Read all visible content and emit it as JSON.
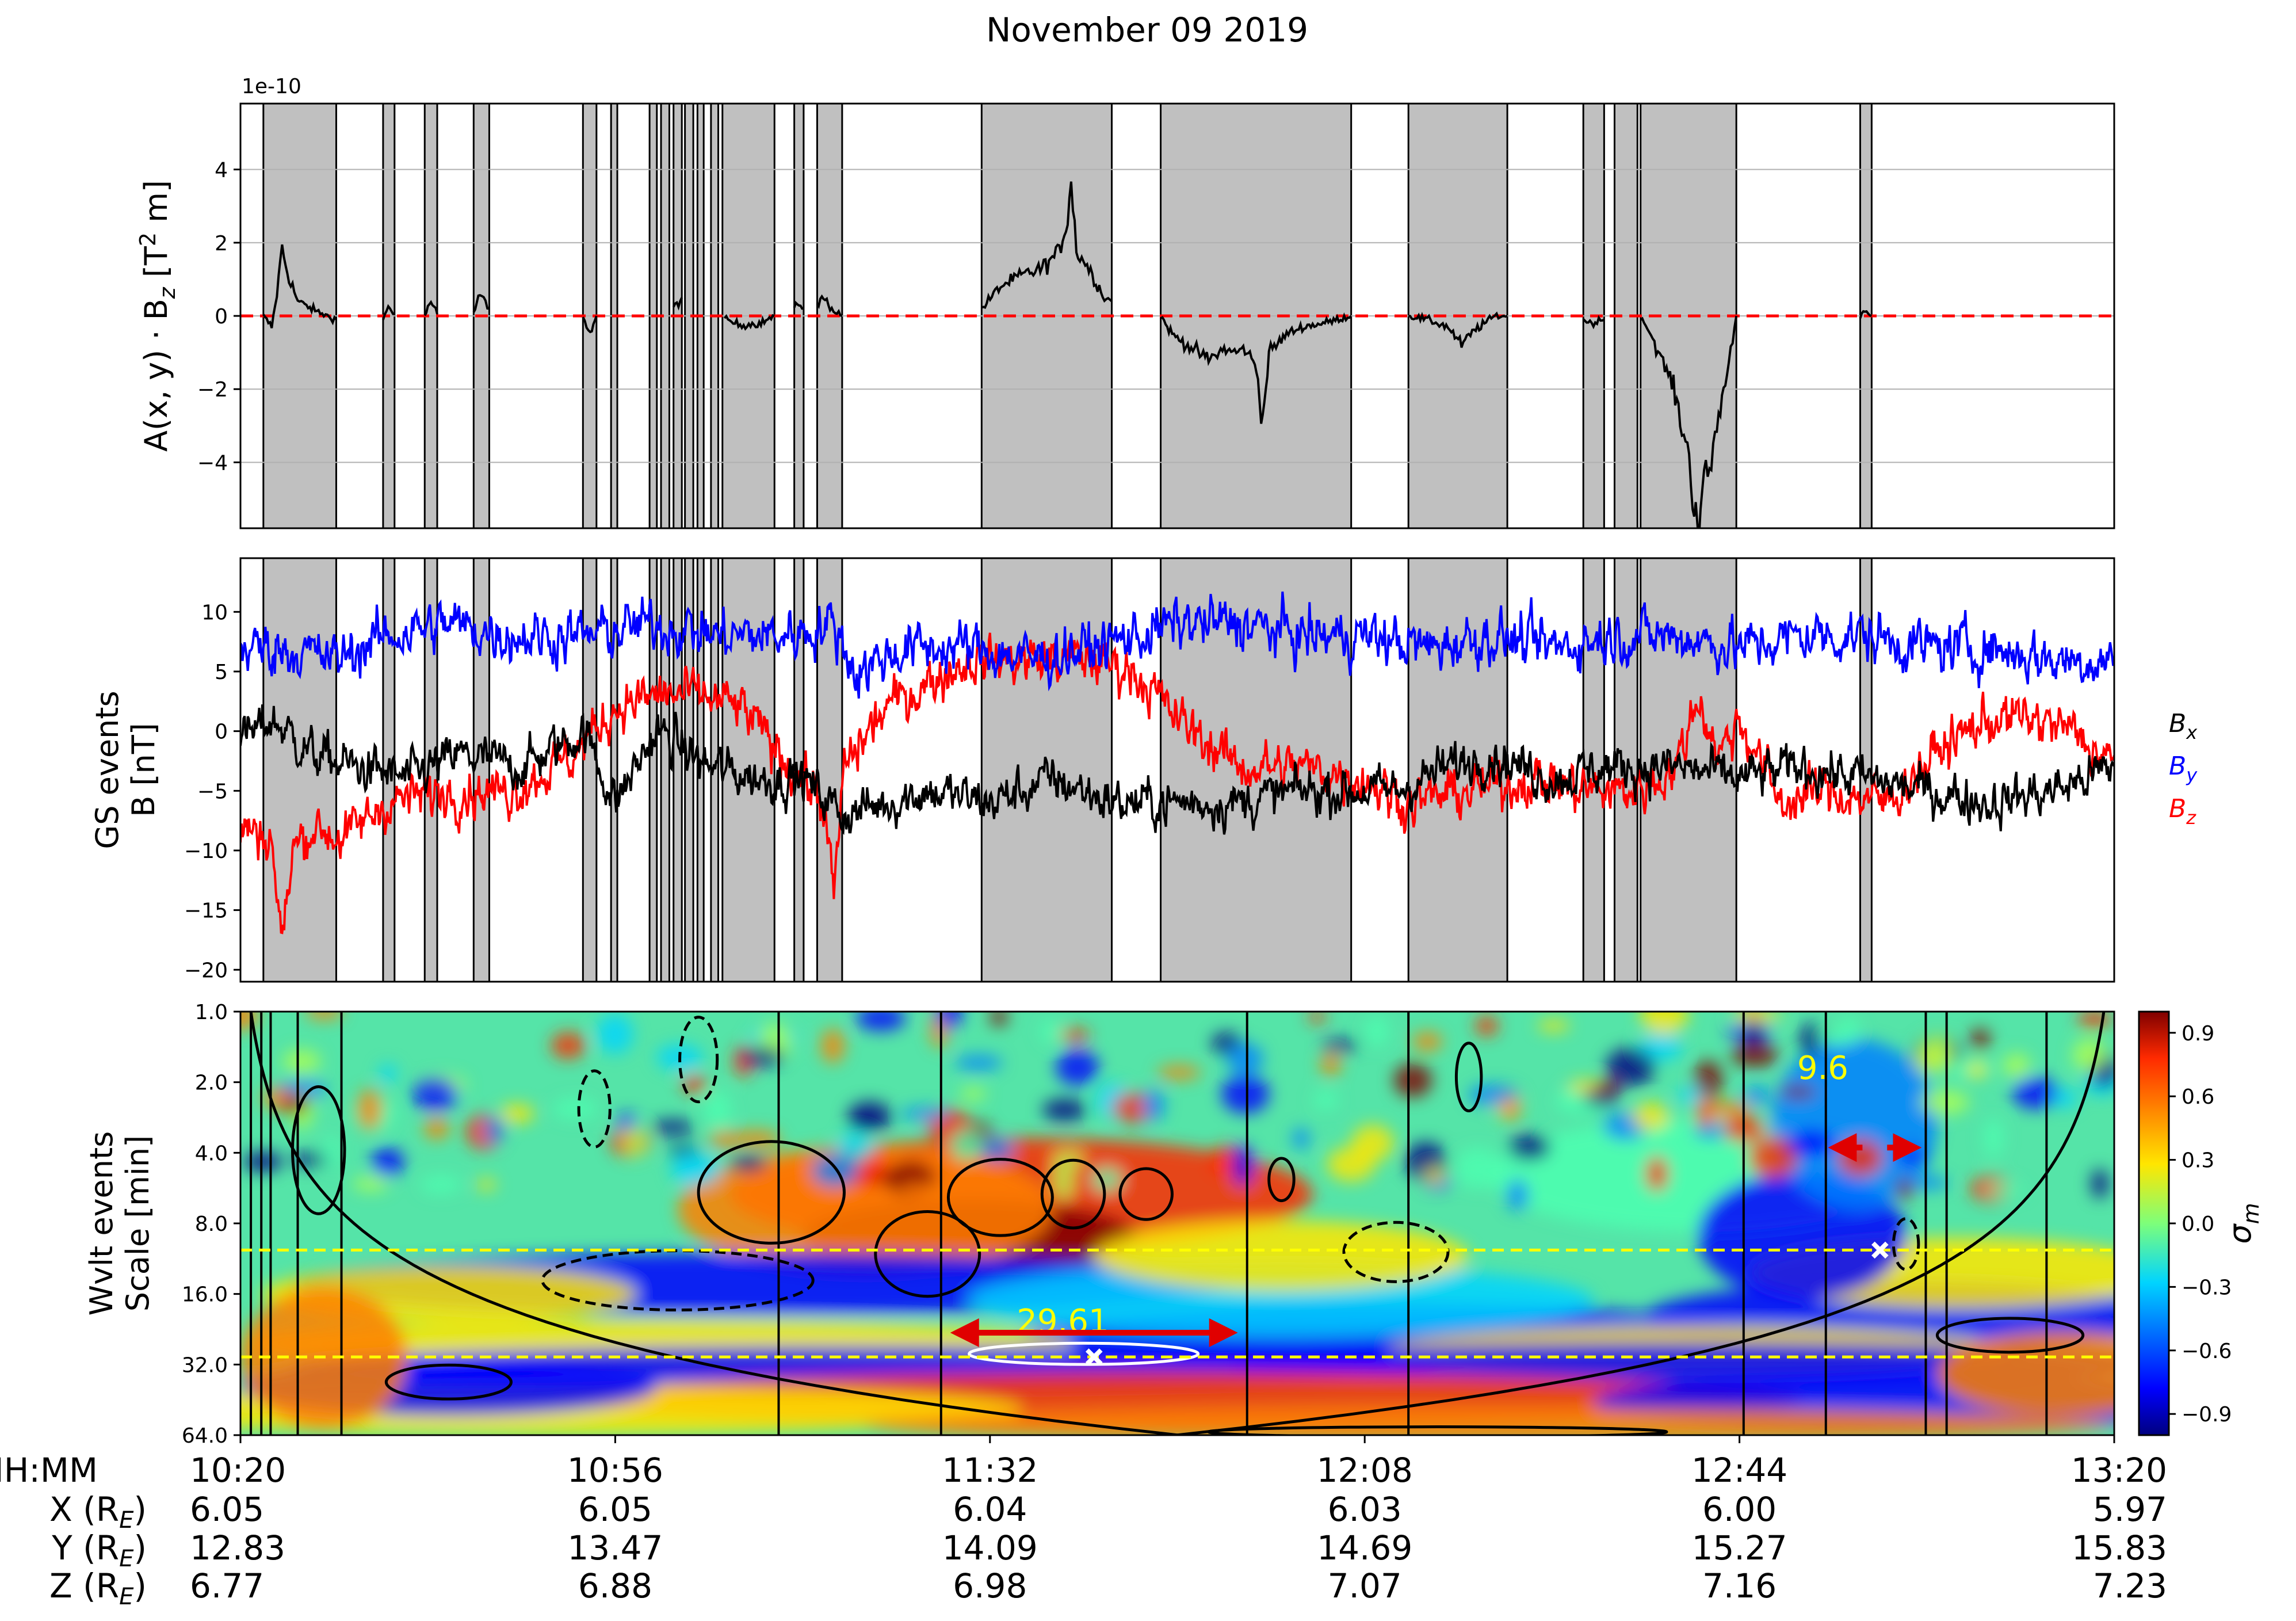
{
  "title": "November 09 2019",
  "colors": {
    "event_fill": "#c0c0c0",
    "trace_black": "#000000",
    "bx": "#000000",
    "by": "#0000ff",
    "bz": "#ff0000",
    "zero_line": "#ff0000",
    "marker_line": "#ffff00",
    "arrow": "#e00000",
    "grid": "#b0b0b0"
  },
  "chart_data": [
    {
      "type": "line",
      "name_panel": "top",
      "ylabel": "A(x, y) · B_z [T² m]",
      "ylabel_parts": {
        "a": "A(x, y) · B",
        "sub": "z",
        "b": " [T",
        "sup": "2",
        "c": " m]"
      },
      "offset_text": "1e-10",
      "ylim": [
        -5.8,
        5.8
      ],
      "yticks": [
        4,
        2,
        0,
        -2,
        -4
      ],
      "ytick_labels": [
        "4",
        "2",
        "0",
        "−2",
        "−4"
      ],
      "grid": "horizontal",
      "zero_line": "dashed red at 0",
      "x_minutes_range": [
        0,
        180
      ],
      "events_minutes": [
        [
          2.2,
          9.2
        ],
        [
          13.7,
          14.8
        ],
        [
          17.7,
          18.9
        ],
        [
          22.4,
          23.9
        ],
        [
          32.9,
          34.2
        ],
        [
          35.6,
          36.2
        ],
        [
          39.3,
          40.0
        ],
        [
          40.4,
          41.2
        ],
        [
          41.6,
          42.4
        ],
        [
          42.7,
          43.5
        ],
        [
          43.9,
          44.5
        ],
        [
          45.2,
          45.9
        ],
        [
          46.3,
          51.3
        ],
        [
          53.2,
          54.1
        ],
        [
          55.4,
          57.8
        ],
        [
          71.2,
          83.7
        ],
        [
          88.4,
          106.7
        ],
        [
          112.2,
          121.7
        ],
        [
          129.0,
          131.0
        ],
        [
          132.0,
          134.2
        ],
        [
          134.5,
          143.7
        ],
        [
          155.6,
          156.7
        ]
      ],
      "series": [
        {
          "name": "",
          "points": [
            [
              2.2,
              0.0
            ],
            [
              3.0,
              -0.3
            ],
            [
              3.5,
              0.6
            ],
            [
              4.0,
              1.9
            ],
            [
              4.5,
              1.2
            ],
            [
              5.5,
              0.4
            ],
            [
              6.5,
              0.25
            ],
            [
              7.5,
              0.1
            ],
            [
              9.2,
              -0.1
            ],
            [
              13.7,
              -0.1
            ],
            [
              14.2,
              0.25
            ],
            [
              14.8,
              0.05
            ],
            [
              17.7,
              0.0
            ],
            [
              18.3,
              0.4
            ],
            [
              18.9,
              0.05
            ],
            [
              22.4,
              0.05
            ],
            [
              23.0,
              0.6
            ],
            [
              23.9,
              0.2
            ],
            [
              32.9,
              0.0
            ],
            [
              33.6,
              -0.5
            ],
            [
              34.2,
              0.0
            ],
            [
              39.3,
              0.0
            ],
            [
              40.2,
              0.15
            ],
            [
              41.6,
              0.2
            ],
            [
              42.4,
              0.5
            ],
            [
              43.0,
              0.0
            ],
            [
              44.0,
              0.1
            ],
            [
              45.0,
              -0.2
            ],
            [
              46.5,
              -0.1
            ],
            [
              48.0,
              -0.25
            ],
            [
              50.0,
              -0.2
            ],
            [
              51.3,
              0.0
            ],
            [
              53.2,
              0.2
            ],
            [
              53.8,
              0.35
            ],
            [
              54.1,
              0.2
            ],
            [
              55.4,
              0.3
            ],
            [
              56.0,
              0.5
            ],
            [
              56.8,
              0.2
            ],
            [
              57.8,
              0.0
            ],
            [
              71.2,
              0.2
            ],
            [
              73.0,
              0.8
            ],
            [
              75.0,
              1.1
            ],
            [
              77.0,
              1.3
            ],
            [
              78.5,
              1.7
            ],
            [
              79.3,
              2.4
            ],
            [
              79.8,
              3.7
            ],
            [
              80.3,
              1.8
            ],
            [
              81.5,
              1.3
            ],
            [
              83.0,
              0.5
            ],
            [
              83.7,
              0.4
            ],
            [
              88.4,
              0.0
            ],
            [
              89.5,
              -0.5
            ],
            [
              91.0,
              -0.8
            ],
            [
              93.0,
              -1.2
            ],
            [
              94.5,
              -0.9
            ],
            [
              95.5,
              -1.0
            ],
            [
              96.5,
              -0.9
            ],
            [
              97.6,
              -1.4
            ],
            [
              98.2,
              -2.9
            ],
            [
              98.8,
              -1.0
            ],
            [
              100.5,
              -0.5
            ],
            [
              102.0,
              -0.3
            ],
            [
              104.0,
              -0.2
            ],
            [
              106.7,
              0.0
            ],
            [
              112.2,
              0.0
            ],
            [
              114.0,
              -0.1
            ],
            [
              116.0,
              -0.3
            ],
            [
              117.3,
              -0.8
            ],
            [
              118.5,
              -0.4
            ],
            [
              120.5,
              0.0
            ],
            [
              121.7,
              0.0
            ],
            [
              129.0,
              -0.1
            ],
            [
              129.8,
              -0.2
            ],
            [
              131.0,
              -0.1
            ],
            [
              134.5,
              0.0
            ],
            [
              135.5,
              -0.5
            ],
            [
              136.5,
              -1.2
            ],
            [
              137.5,
              -1.8
            ],
            [
              138.3,
              -2.8
            ],
            [
              139.0,
              -3.6
            ],
            [
              139.5,
              -4.8
            ],
            [
              140.1,
              -5.7
            ],
            [
              140.6,
              -4.6
            ],
            [
              141.3,
              -4.0
            ],
            [
              142.0,
              -2.7
            ],
            [
              142.8,
              -1.6
            ],
            [
              143.7,
              0.0
            ],
            [
              155.6,
              0.0
            ],
            [
              156.2,
              0.2
            ],
            [
              156.7,
              0.0
            ]
          ]
        }
      ]
    },
    {
      "type": "line",
      "name_panel": "middle",
      "ylabel_line1": "GS events",
      "ylabel_line2": "B [nT]",
      "ylim": [
        -21,
        14.5
      ],
      "yticks": [
        10,
        5,
        0,
        -5,
        -10,
        -15,
        -20
      ],
      "ytick_labels": [
        "10",
        "5",
        "0",
        "−5",
        "−10",
        "−15",
        "−20"
      ],
      "x_minutes_range": [
        0,
        180
      ],
      "legend_placement": "right",
      "series": [
        {
          "name": "B_x",
          "name_parts": {
            "a": "B",
            "sub": "x"
          },
          "color": "#000000",
          "anchors": [
            [
              0,
              -1
            ],
            [
              3,
              1
            ],
            [
              7,
              -2
            ],
            [
              11,
              -3
            ],
            [
              16,
              -4
            ],
            [
              21,
              -2
            ],
            [
              27,
              -3
            ],
            [
              33,
              0
            ],
            [
              36,
              -6
            ],
            [
              40,
              0
            ],
            [
              45,
              -3
            ],
            [
              50,
              -4
            ],
            [
              54,
              -4
            ],
            [
              58,
              -7
            ],
            [
              62,
              -6
            ],
            [
              66,
              -5
            ],
            [
              72,
              -6
            ],
            [
              78,
              -4
            ],
            [
              84,
              -6
            ],
            [
              90,
              -6
            ],
            [
              96,
              -6
            ],
            [
              102,
              -5
            ],
            [
              108,
              -5
            ],
            [
              111,
              -5
            ],
            [
              116,
              -3
            ],
            [
              120,
              -2
            ],
            [
              126,
              -4
            ],
            [
              132,
              -3
            ],
            [
              138,
              -3
            ],
            [
              144,
              -4
            ],
            [
              150,
              -3
            ],
            [
              156,
              -4
            ],
            [
              162,
              -5
            ],
            [
              168,
              -6
            ],
            [
              174,
              -5
            ],
            [
              180,
              -3
            ]
          ],
          "noise": 1.6
        },
        {
          "name": "B_y",
          "name_parts": {
            "a": "B",
            "sub": "y"
          },
          "color": "#0000ff",
          "anchors": [
            [
              0,
              7
            ],
            [
              4,
              7
            ],
            [
              9,
              6
            ],
            [
              14,
              8
            ],
            [
              20,
              9
            ],
            [
              26,
              8
            ],
            [
              33,
              8
            ],
            [
              40,
              9
            ],
            [
              46,
              8
            ],
            [
              52,
              8
            ],
            [
              57,
              9
            ],
            [
              59,
              5
            ],
            [
              64,
              7
            ],
            [
              70,
              7
            ],
            [
              76,
              6
            ],
            [
              82,
              7
            ],
            [
              90,
              9
            ],
            [
              96,
              9
            ],
            [
              102,
              8
            ],
            [
              108,
              8
            ],
            [
              114,
              7
            ],
            [
              120,
              8
            ],
            [
              126,
              7
            ],
            [
              132,
              8
            ],
            [
              138,
              8
            ],
            [
              144,
              7
            ],
            [
              150,
              8
            ],
            [
              156,
              8
            ],
            [
              162,
              7
            ],
            [
              168,
              7
            ],
            [
              174,
              6
            ],
            [
              180,
              6
            ]
          ],
          "noise": 1.8
        },
        {
          "name": "B_z",
          "name_parts": {
            "a": "B",
            "sub": "z"
          },
          "color": "#ff0000",
          "anchors": [
            [
              0,
              -8
            ],
            [
              3,
              -9
            ],
            [
              4,
              -18
            ],
            [
              5,
              -10
            ],
            [
              7,
              -8
            ],
            [
              10,
              -9
            ],
            [
              14,
              -6
            ],
            [
              20,
              -5
            ],
            [
              26,
              -5
            ],
            [
              32,
              -2
            ],
            [
              36,
              2
            ],
            [
              40,
              3
            ],
            [
              44,
              3
            ],
            [
              48,
              2
            ],
            [
              52,
              -2
            ],
            [
              56,
              -6
            ],
            [
              57,
              -14
            ],
            [
              58,
              -3
            ],
            [
              62,
              2
            ],
            [
              66,
              4
            ],
            [
              70,
              6
            ],
            [
              76,
              6
            ],
            [
              82,
              6
            ],
            [
              86,
              5
            ],
            [
              90,
              1
            ],
            [
              96,
              -3
            ],
            [
              102,
              -3
            ],
            [
              108,
              -4
            ],
            [
              112,
              -6
            ],
            [
              118,
              -5
            ],
            [
              124,
              -4
            ],
            [
              130,
              -5
            ],
            [
              134,
              -5
            ],
            [
              138,
              -3
            ],
            [
              140,
              3
            ],
            [
              142,
              -2
            ],
            [
              144,
              1
            ],
            [
              148,
              -6
            ],
            [
              152,
              -5
            ],
            [
              158,
              -6
            ],
            [
              164,
              -1
            ],
            [
              168,
              1
            ],
            [
              172,
              1
            ],
            [
              176,
              0
            ],
            [
              180,
              -3
            ]
          ],
          "noise": 1.7
        }
      ]
    },
    {
      "type": "heatmap",
      "name_panel": "bottom",
      "ylabel_line1": "Wvlt events",
      "ylabel_line2": "Scale [min]",
      "y_scale": "log2",
      "ylim": [
        1.0,
        64.0
      ],
      "yticks": [
        1.0,
        2.0,
        4.0,
        8.0,
        16.0,
        32.0,
        64.0
      ],
      "ytick_labels": [
        "1.0",
        "2.0",
        "4.0",
        "8.0",
        "16.0",
        "32.0",
        "64.0"
      ],
      "x_minutes_range": [
        0,
        180
      ],
      "colorbar_label": "σ_m",
      "colorbar_label_parts": {
        "a": "σ",
        "sub": "m"
      },
      "colorbar_range": [
        -1.0,
        1.0
      ],
      "colorbar_ticks": [
        0.9,
        0.6,
        0.3,
        0.0,
        -0.3,
        -0.6,
        -0.9
      ],
      "colorbar_tick_labels": [
        "0.9",
        "0.6",
        "0.3",
        "0.0",
        "−0.3",
        "−0.6",
        "−0.9"
      ],
      "event_lines_minutes": [
        1.0,
        2.0,
        2.9,
        5.5,
        9.7,
        51.7,
        67.3,
        96.7,
        112.2,
        144.4,
        152.3,
        161.9,
        163.9,
        173.5
      ],
      "dashed_scales_min": [
        10.4,
        29.7
      ],
      "annotations": [
        {
          "text": "29.61",
          "x": 79.0,
          "scale": 21.0,
          "arrow_from": 67.3,
          "arrow_to": 96.7,
          "marker_x": 82.0,
          "marker_scale": 29.7
        },
        {
          "text": "9.6",
          "x": 152.0,
          "scale": 1.75,
          "arrow_from": 152.5,
          "arrow_to": 161.5,
          "arrow_scale": 3.8,
          "marker_x": 157.5,
          "marker_scale": 10.4
        }
      ]
    }
  ],
  "xaxis": {
    "row_labels": [
      "HH:MM",
      "X (R_E)",
      "Y (R_E)",
      "Z (R_E)"
    ],
    "row_label_parts": [
      {
        "a": "HH:MM"
      },
      {
        "a": "X (R",
        "sub": "E",
        "b": ")"
      },
      {
        "a": "Y (R",
        "sub": "E",
        "b": ")"
      },
      {
        "a": "Z (R",
        "sub": "E",
        "b": ")"
      }
    ],
    "tick_minutes": [
      0,
      36,
      72,
      108,
      144,
      180
    ],
    "times": [
      "10:20",
      "10:56",
      "11:32",
      "12:08",
      "12:44",
      "13:20"
    ],
    "X": [
      "6.05",
      "6.05",
      "6.04",
      "6.03",
      "6.00",
      "5.97"
    ],
    "Y": [
      "12.83",
      "13.47",
      "14.09",
      "14.69",
      "15.27",
      "15.83"
    ],
    "Z": [
      "6.77",
      "6.88",
      "6.98",
      "7.07",
      "7.16",
      "7.23"
    ]
  }
}
